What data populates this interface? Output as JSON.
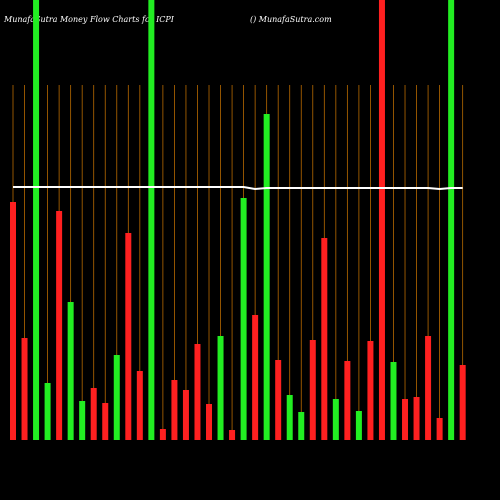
{
  "chart_data": {
    "type": "bar",
    "title": "MunafaSutra  Money Flow  Charts for ICPI",
    "subtitle": "() MunafaSutra.com",
    "values": [
      238,
      102,
      440,
      57,
      229,
      138,
      39,
      52,
      37,
      85,
      207,
      69,
      440,
      11,
      60,
      50,
      96,
      36,
      104,
      10,
      242,
      125,
      326,
      80,
      45,
      28,
      100,
      202,
      41,
      79,
      29,
      99,
      440,
      78,
      41,
      43,
      104,
      22,
      440,
      75
    ],
    "colors": [
      "#ff2020",
      "#ff2020",
      "#22ee22",
      "#22ee22",
      "#ff2020",
      "#22ee22",
      "#22ee22",
      "#ff2020",
      "#ff2020",
      "#22ee22",
      "#ff2020",
      "#ff2020",
      "#22ee22",
      "#ff2020",
      "#ff2020",
      "#ff2020",
      "#ff2020",
      "#ff2020",
      "#22ee22",
      "#ff2020",
      "#22ee22",
      "#ff2020",
      "#22ee22",
      "#ff2020",
      "#22ee22",
      "#22ee22",
      "#ff2020",
      "#ff2020",
      "#22ee22",
      "#ff2020",
      "#22ee22",
      "#ff2020",
      "#ff2020",
      "#22ee22",
      "#ff2020",
      "#ff2020",
      "#ff2020",
      "#ff2020",
      "#22ee22",
      "#ff2020"
    ],
    "ylim": [
      0,
      440
    ],
    "line": {
      "color": "#ffffff",
      "values": [
        253,
        253,
        253,
        253,
        253,
        253,
        253,
        253,
        253,
        253,
        253,
        253,
        253,
        253,
        253,
        253,
        253,
        253,
        253,
        253,
        253,
        251,
        252,
        252,
        252,
        252,
        252,
        252,
        252,
        252,
        252,
        252,
        252,
        252,
        252,
        252,
        252,
        251,
        252,
        252
      ]
    }
  }
}
